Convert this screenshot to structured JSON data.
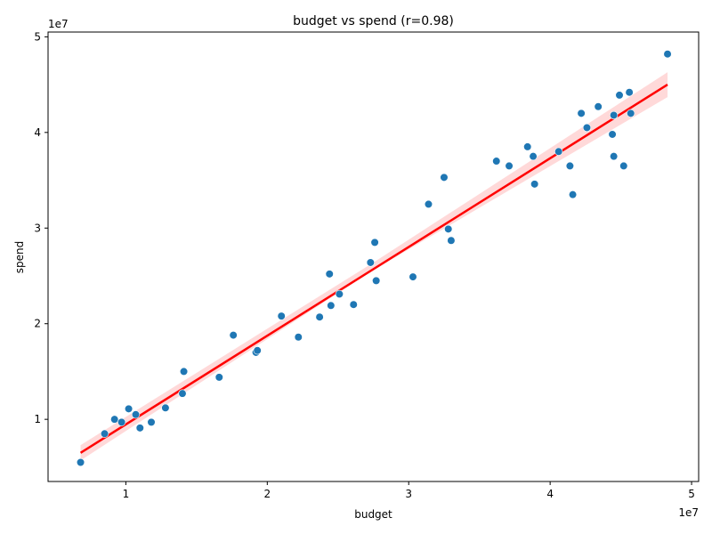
{
  "chart_data": {
    "type": "scatter",
    "title": "budget vs spend (r=0.98)",
    "xlabel": "budget",
    "ylabel": "spend",
    "x_offset_label": "1e7",
    "y_offset_label": "1e7",
    "xlim": [
      0.45,
      5.05
    ],
    "ylim": [
      0.35,
      5.05
    ],
    "x_ticks": [
      1,
      2,
      3,
      4,
      5
    ],
    "y_ticks": [
      1,
      2,
      3,
      4,
      5
    ],
    "x_tick_labels": [
      "1",
      "2",
      "3",
      "4",
      "5"
    ],
    "y_tick_labels": [
      "1",
      "2",
      "3",
      "4",
      "5"
    ],
    "grid": false,
    "point_color": "#1f77b4",
    "line_color": "#ff0000",
    "band_color": "#ff0000",
    "regression": {
      "x": [
        0.68,
        4.83
      ],
      "y": [
        0.65,
        4.5
      ]
    },
    "band": {
      "x": [
        0.68,
        2.75,
        4.83
      ],
      "upper": [
        0.73,
        2.64,
        4.63
      ],
      "lower": [
        0.57,
        2.56,
        4.37
      ]
    },
    "points": [
      {
        "x": 0.68,
        "y": 0.55
      },
      {
        "x": 0.85,
        "y": 0.85
      },
      {
        "x": 0.92,
        "y": 1.0
      },
      {
        "x": 0.97,
        "y": 0.97
      },
      {
        "x": 1.02,
        "y": 1.11
      },
      {
        "x": 1.07,
        "y": 1.05
      },
      {
        "x": 1.1,
        "y": 0.91
      },
      {
        "x": 1.18,
        "y": 0.97
      },
      {
        "x": 1.28,
        "y": 1.12
      },
      {
        "x": 1.4,
        "y": 1.27
      },
      {
        "x": 1.41,
        "y": 1.5
      },
      {
        "x": 1.66,
        "y": 1.44
      },
      {
        "x": 1.76,
        "y": 1.88
      },
      {
        "x": 1.92,
        "y": 1.7
      },
      {
        "x": 1.93,
        "y": 1.72
      },
      {
        "x": 2.1,
        "y": 2.08
      },
      {
        "x": 2.22,
        "y": 1.86
      },
      {
        "x": 2.37,
        "y": 2.07
      },
      {
        "x": 2.44,
        "y": 2.52
      },
      {
        "x": 2.45,
        "y": 2.19
      },
      {
        "x": 2.51,
        "y": 2.31
      },
      {
        "x": 2.61,
        "y": 2.2
      },
      {
        "x": 2.73,
        "y": 2.64
      },
      {
        "x": 2.76,
        "y": 2.85
      },
      {
        "x": 2.77,
        "y": 2.45
      },
      {
        "x": 3.03,
        "y": 2.49
      },
      {
        "x": 3.14,
        "y": 3.25
      },
      {
        "x": 3.25,
        "y": 3.53
      },
      {
        "x": 3.28,
        "y": 2.99
      },
      {
        "x": 3.3,
        "y": 2.87
      },
      {
        "x": 3.62,
        "y": 3.7
      },
      {
        "x": 3.71,
        "y": 3.65
      },
      {
        "x": 3.84,
        "y": 3.85
      },
      {
        "x": 3.88,
        "y": 3.75
      },
      {
        "x": 3.89,
        "y": 3.46
      },
      {
        "x": 4.06,
        "y": 3.8
      },
      {
        "x": 4.14,
        "y": 3.65
      },
      {
        "x": 4.16,
        "y": 3.35
      },
      {
        "x": 4.22,
        "y": 4.2
      },
      {
        "x": 4.26,
        "y": 4.05
      },
      {
        "x": 4.34,
        "y": 4.27
      },
      {
        "x": 4.44,
        "y": 3.98
      },
      {
        "x": 4.45,
        "y": 4.18
      },
      {
        "x": 4.45,
        "y": 3.75
      },
      {
        "x": 4.49,
        "y": 4.39
      },
      {
        "x": 4.52,
        "y": 3.65
      },
      {
        "x": 4.56,
        "y": 4.42
      },
      {
        "x": 4.57,
        "y": 4.2
      },
      {
        "x": 4.83,
        "y": 4.82
      }
    ]
  }
}
